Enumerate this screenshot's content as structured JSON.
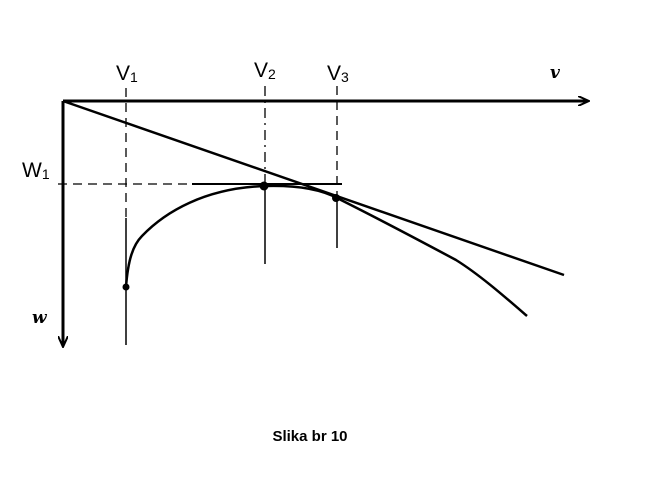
{
  "labels": {
    "v1": "V",
    "v1_sub": "1",
    "v2": "V",
    "v2_sub": "2",
    "v3": "V",
    "v3_sub": "3",
    "w1": "W",
    "w1_sub": "1",
    "x_axis": "v",
    "y_axis": "w"
  },
  "caption": "Slika br 10"
}
